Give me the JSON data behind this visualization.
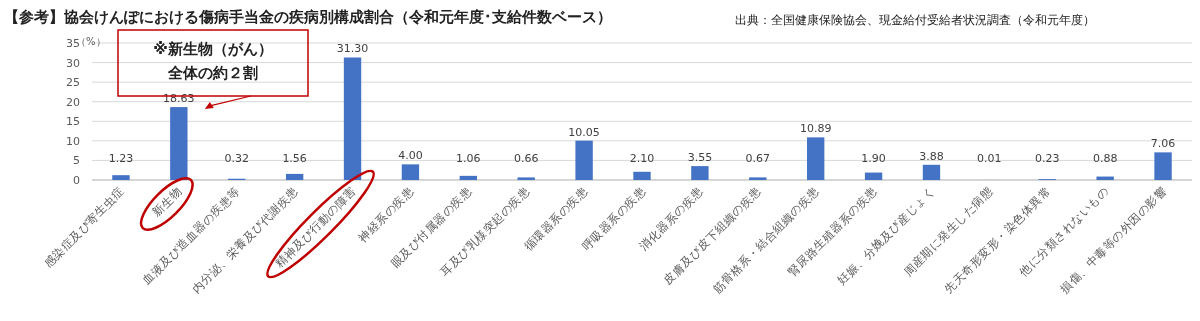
{
  "chart_data": {
    "type": "bar",
    "title": "【参考】協会けんぽにおける傷病手当金の疾病別構成割合（令和元年度･支給件数ベース）",
    "ylabel": "（%）",
    "categories": [
      "感染症及び寄生虫症",
      "新生物",
      "血液及び造血器の疾患等",
      "内分泌、栄養及び代謝疾患",
      "精神及び行動の障害",
      "神経系の疾患",
      "眼及び付属器の疾患",
      "耳及び乳様突起の疾患",
      "循環器系の疾患",
      "呼吸器系の疾患",
      "消化器系の疾患",
      "皮膚及び皮下組織の疾患",
      "筋骨格系・結合組織の疾患",
      "腎尿路生殖器系の疾患",
      "妊娠、分娩及び産じょく",
      "周産期に発生した病態",
      "先天奇形変形・染色体異常",
      "他に分類されないもの",
      "損傷、中毒等の外因の影響"
    ],
    "values": [
      1.23,
      18.63,
      0.32,
      1.56,
      31.3,
      4.0,
      1.06,
      0.66,
      10.05,
      2.1,
      3.55,
      0.67,
      10.89,
      1.9,
      3.88,
      0.01,
      0.23,
      0.88,
      7.06
    ],
    "value_labels": [
      "1.23",
      "18.63",
      "0.32",
      "1.56",
      "31.30",
      "4.00",
      "1.06",
      "0.66",
      "10.05",
      "2.10",
      "3.55",
      "0.67",
      "10.89",
      "1.90",
      "3.88",
      "0.01",
      "0.23",
      "0.88",
      "7.06"
    ],
    "color": "#4472c4",
    "ylim": [
      0,
      35
    ],
    "yticks": [
      0,
      5,
      10,
      15,
      20,
      25,
      30,
      35
    ],
    "grid": "y",
    "annotations": [
      {
        "text": "※新生物（がん）全体の約２割",
        "x": "新生物",
        "y": 18.63
      },
      "出典：全国健康保険協会、現金給付受給者状況調査（令和元年度）"
    ]
  }
}
